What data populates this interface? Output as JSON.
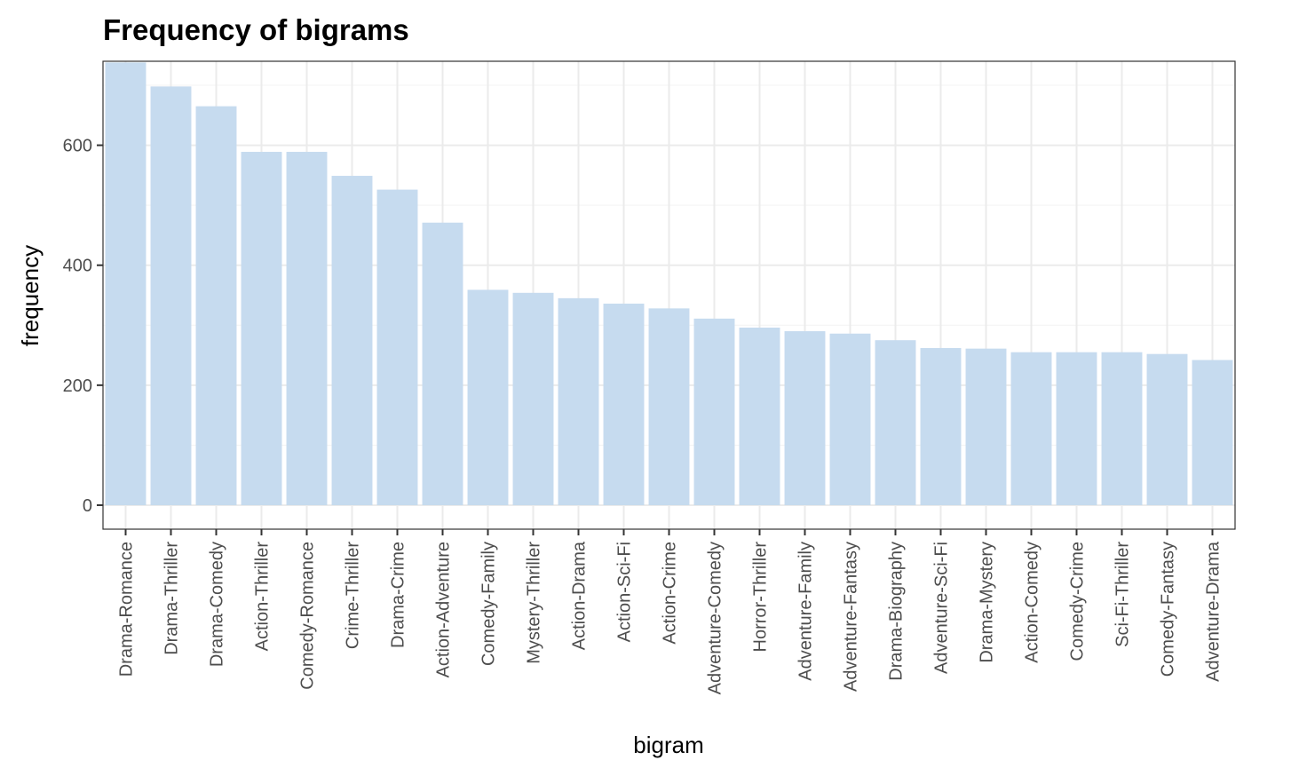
{
  "chart_data": {
    "type": "bar",
    "title": "Frequency of bigrams",
    "xlabel": "bigram",
    "ylabel": "frequency",
    "ylim": [
      -40,
      740
    ],
    "yticks": [
      0,
      200,
      400,
      600
    ],
    "grid": true,
    "bar_color": "#c6dbef",
    "categories": [
      "Drama-Romance",
      "Drama-Thriller",
      "Drama-Comedy",
      "Action-Thriller",
      "Comedy-Romance",
      "Crime-Thriller",
      "Drama-Crime",
      "Action-Adventure",
      "Comedy-Family",
      "Mystery-Thriller",
      "Action-Drama",
      "Action-Sci-Fi",
      "Action-Crime",
      "Adventure-Comedy",
      "Horror-Thriller",
      "Adventure-Family",
      "Adventure-Fantasy",
      "Drama-Biography",
      "Adventure-Sci-Fi",
      "Drama-Mystery",
      "Action-Comedy",
      "Comedy-Crime",
      "Sci-Fi-Thriller",
      "Comedy-Fantasy",
      "Adventure-Drama"
    ],
    "values": [
      738,
      698,
      665,
      589,
      589,
      549,
      526,
      471,
      359,
      354,
      345,
      336,
      328,
      311,
      296,
      290,
      286,
      275,
      262,
      261,
      255,
      255,
      255,
      252,
      242
    ]
  }
}
